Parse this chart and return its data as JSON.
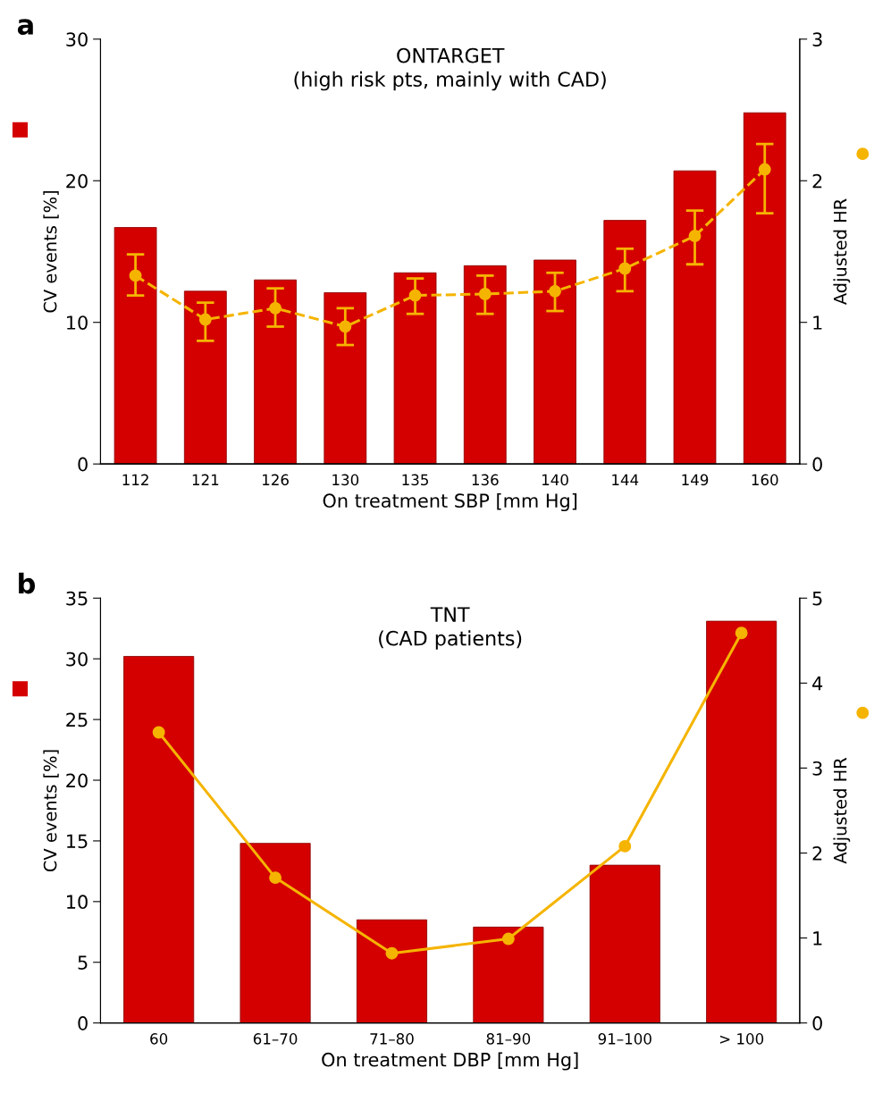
{
  "chart_data": [
    {
      "type": "bar",
      "title": "ONTARGET\n(high risk pts, mainly with CAD)",
      "xlabel": "On treatment SBP [mm Hg]",
      "ylabel": "CV events [%]",
      "y2label": "Adjusted HR",
      "annotations": [
        "a"
      ],
      "categories": [
        "112",
        "121",
        "126",
        "130",
        "135",
        "136",
        "140",
        "144",
        "149",
        "160"
      ],
      "series": [
        {
          "color": "#d40000",
          "values": [
            16.7,
            12.2,
            13.0,
            12.1,
            13.5,
            14.0,
            14.4,
            17.2,
            20.7,
            24.8
          ]
        },
        {
          "type": "line",
          "axis": "y2",
          "color": "#f5b400",
          "marker": "circle",
          "line_style": "dashed",
          "values": [
            1.33,
            1.02,
            1.1,
            0.97,
            1.19,
            1.2,
            1.22,
            1.38,
            1.61,
            2.08
          ],
          "errors": [
            [
              1.19,
              1.48
            ],
            [
              0.87,
              1.14
            ],
            [
              0.97,
              1.24
            ],
            [
              0.84,
              1.1
            ],
            [
              1.06,
              1.31
            ],
            [
              1.06,
              1.33
            ],
            [
              1.08,
              1.35
            ],
            [
              1.22,
              1.52
            ],
            [
              1.41,
              1.79
            ],
            [
              1.77,
              2.26
            ]
          ]
        }
      ],
      "ylim": [
        0,
        30
      ],
      "yticks": [
        0,
        10,
        20,
        30
      ],
      "y2lim": [
        0,
        3
      ],
      "y2ticks": [
        0,
        1,
        2,
        3
      ],
      "grid": false,
      "legend": false
    },
    {
      "type": "bar",
      "title": "TNT\n(CAD patients)",
      "xlabel": "On treatment DBP [mm Hg]",
      "ylabel": "CV events [%]",
      "y2label": "Adjusted HR",
      "annotations": [
        "b"
      ],
      "categories": [
        "60",
        "61–70",
        "71–80",
        "81–90",
        "91–100",
        "> 100"
      ],
      "series": [
        {
          "color": "#d40000",
          "values": [
            30.2,
            14.8,
            8.5,
            7.9,
            13.0,
            33.1
          ]
        },
        {
          "type": "line",
          "axis": "y2",
          "color": "#f5b400",
          "marker": "circle",
          "line_style": "solid",
          "values": [
            3.42,
            1.71,
            0.82,
            0.99,
            2.08,
            4.59
          ]
        }
      ],
      "ylim": [
        0,
        35
      ],
      "yticks": [
        0,
        5,
        10,
        15,
        20,
        25,
        30,
        35
      ],
      "y2lim": [
        0,
        5
      ],
      "y2ticks": [
        0,
        1,
        2,
        3,
        4,
        5
      ],
      "grid": false,
      "legend": false
    }
  ]
}
